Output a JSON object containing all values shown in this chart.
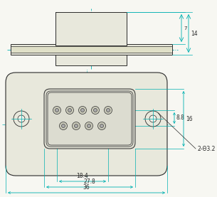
{
  "bg_color": "#f7f7f2",
  "line_color": "#2a2a2a",
  "dim_color": "#00b0b0",
  "fill_color": "#e8e8dc",
  "fill_inner": "#dcdcd0",
  "dims": {
    "d_height_top": "7",
    "d_height_full": "14",
    "d_pin_spacing": "8.8",
    "d_connector_h": "16",
    "d_pin_width": "18.4",
    "d_inner_width": "27.8",
    "d_total_width": "36",
    "d_holes": "2-Θ3.2"
  }
}
